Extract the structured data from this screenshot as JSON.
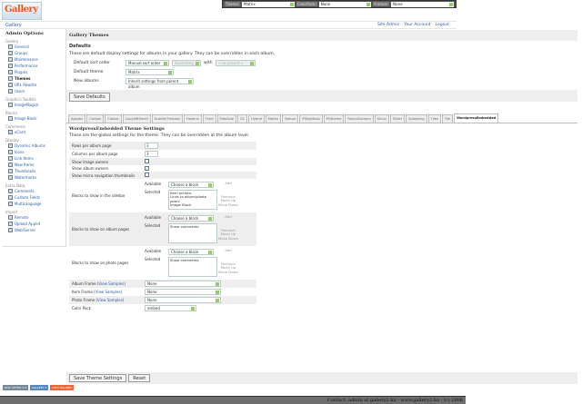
{
  "logo": "Gallery",
  "topbar": {
    "theme_label": "Theme:",
    "theme": "Matrix",
    "colorpack_label": "ColorPack:",
    "colorpack": "None",
    "frames_label": "Frames:",
    "frames": "None"
  },
  "breadcrumb": "Gallery",
  "toplinks": [
    "Site Admin",
    "Your Account",
    "Logout"
  ],
  "sidebar": {
    "title": "Admin Options",
    "groups": [
      {
        "name": "Gallery",
        "items": [
          "General",
          "Groups",
          "Maintenance",
          "Performance",
          "Plugins",
          "Themes",
          "URL Rewrite",
          "Users"
        ]
      },
      {
        "name": "Graphics Toolkits",
        "items": [
          "ImageMagick"
        ]
      },
      {
        "name": "Blocks",
        "items": [
          "Image Block"
        ]
      },
      {
        "name": "Commerce",
        "items": [
          "eCard"
        ]
      },
      {
        "name": "Display",
        "items": [
          "Dynamic Albums",
          "Icons",
          "Link Items",
          "New Items",
          "Thumbnails",
          "Watermarks"
        ]
      },
      {
        "name": "Extra Data",
        "items": [
          "Comments",
          "Custom Fields",
          "MultiLanguage"
        ]
      },
      {
        "name": "Import",
        "items": [
          "Remote",
          "Upload Applet",
          "Web/Server"
        ]
      }
    ],
    "current": "Themes"
  },
  "main": {
    "title": "Gallery Themes",
    "defaults_title": "Defaults",
    "defaults_desc": "These are default display settings for albums in your gallery. They can be overridden in each album.",
    "sort_label": "Default sort order",
    "sort": "Manual sort order",
    "sort_dir": "Ascending",
    "with_label": "with",
    "with": "« no presort »",
    "theme_label": "Default theme",
    "theme": "Matrix",
    "new_albums_label": "New albums",
    "new_albums": "Inherit settings from parent album",
    "save_defaults": "Save Defaults"
  },
  "tabs": [
    "Ajaxian",
    "Carbon",
    "Classic",
    "CopyleftSmall",
    "EclecticThreads",
    "Flashrix",
    "Fluid",
    "FotoSale",
    "G1",
    "Hybrid",
    "Matrix",
    "Nature",
    "PGlightbox",
    "PGtheme",
    "RoundCorners",
    "Siriux",
    "Slider",
    "Splashing",
    "Tiles",
    "Tile",
    "WordpressEmbedded"
  ],
  "active_tab": "WordpressEmbedded",
  "settings": {
    "title": "WordpressEmbedded Theme Settings",
    "desc": "These are the global settings for the theme. They can be overridden at the album level.",
    "rows_label": "Rows per album page",
    "rows": "3",
    "cols_label": "Columns per album page",
    "cols": "3",
    "image_owners_label": "Show image owners",
    "image_owners": false,
    "album_owners_label": "Show album owners",
    "album_owners": true,
    "micro_label": "Show micro navigation thumbnails",
    "micro": false,
    "available_label": "Available",
    "selected_label": "Selected",
    "choose": "Choose a block",
    "add": "Add",
    "remove": "Remove",
    "move_up": "Move Up",
    "move_down": "Move Down",
    "sidebar_label": "Blocks to show in the sidebar",
    "sidebar_blocks": [
      "Item actions",
      "Links to album/photo peers",
      "Image Block"
    ],
    "album_label": "Blocks to show on album pages",
    "album_blocks": [
      "Show comments"
    ],
    "photo_label": "Blocks to show on photo pages",
    "photo_blocks": [
      "Show comments"
    ],
    "album_frame_label": "Album Frame",
    "item_frame_label": "Item Frame",
    "photo_frame_label": "Photo Frame",
    "view_samples": "View Samples",
    "album_frame": "None",
    "item_frame": "None",
    "photo_frame": "None",
    "colorpack_label": "Color Pack",
    "colorpack": "embed",
    "save": "Save Theme Settings",
    "reset": "Reset"
  },
  "badges": [
    "W3C XHTML 1.0",
    "GALLERY 2",
    "HELP GALLERY"
  ],
  "footer": "Contact: admin at gallery2.hu - www.gallery2.hu - (c) 2006"
}
